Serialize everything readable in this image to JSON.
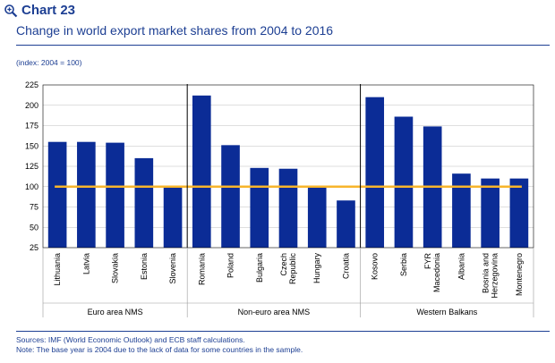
{
  "header": {
    "chart_number": "Chart 23",
    "title": "Change in world export market shares from 2004 to 2016",
    "index_note": "(index: 2004 = 100)",
    "magnifier_icon": "magnifier-icon"
  },
  "footer": {
    "sources": "Sources: IMF (World Economic Outlook) and ECB staff calculations.",
    "note": "Note: The base year is 2004 due to the lack of data for some countries in the sample."
  },
  "colors": {
    "bar": "#0b2c96",
    "line": "#f7b52c",
    "text": "#1d3f93"
  },
  "chart_data": {
    "type": "bar",
    "title": "Change in world export market shares from 2004 to 2016",
    "ylabel": "(index: 2004 = 100)",
    "xlabel": "",
    "ylim": [
      25,
      225
    ],
    "yticks": [
      25,
      50,
      75,
      100,
      125,
      150,
      175,
      200,
      225
    ],
    "grid": true,
    "reference_line": 100,
    "categories": [
      "Lithuania",
      "Latvia",
      "Slovakia",
      "Estonia",
      "Slovenia",
      "Romania",
      "Poland",
      "Bulgaria",
      "Czech Republic",
      "Hungary",
      "Croatia",
      "Kosovo",
      "Serbia",
      "FYR Macedonia",
      "Albania",
      "Bosnia and Herzegovina",
      "Montenegro"
    ],
    "values": [
      155,
      155,
      154,
      135,
      100,
      212,
      151,
      123,
      122,
      100,
      83,
      210,
      186,
      174,
      116,
      110,
      110
    ],
    "groups": [
      {
        "label": "Euro area NMS",
        "count": 5
      },
      {
        "label": "Non-euro area NMS",
        "count": 6
      },
      {
        "label": "Western Balkans",
        "count": 6
      }
    ]
  }
}
